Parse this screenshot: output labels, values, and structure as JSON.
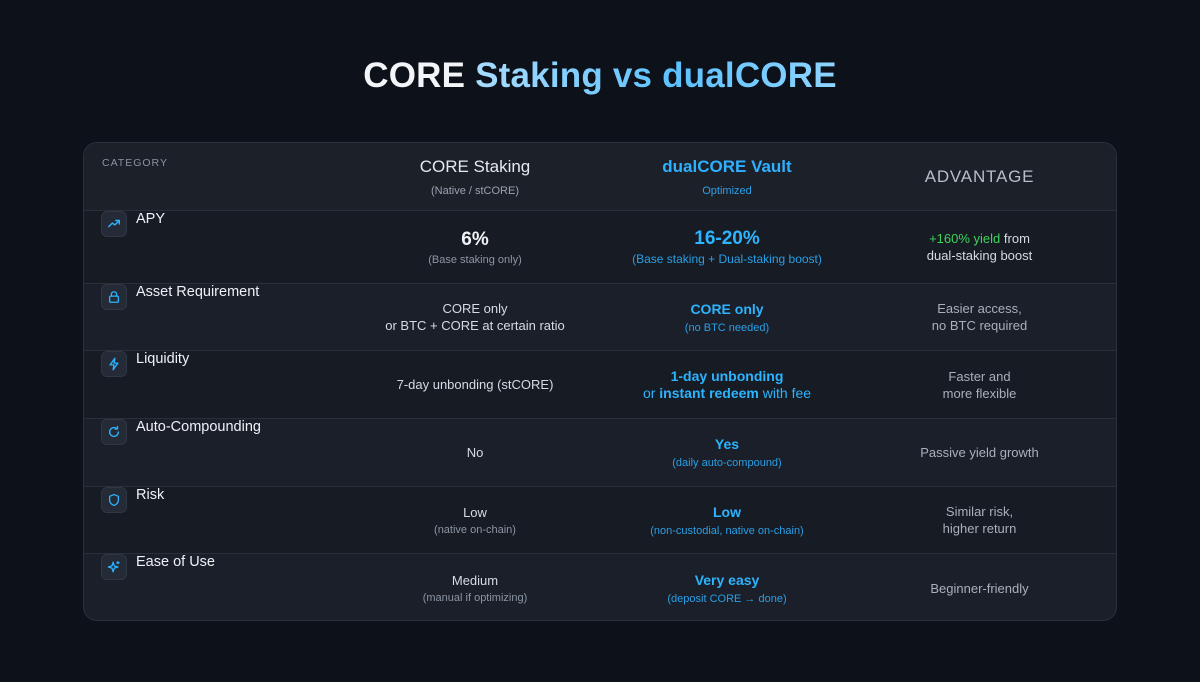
{
  "title": {
    "part1": "CORE ",
    "part2": "Staking vs dualCORE"
  },
  "header": {
    "category": "CATEGORY",
    "core_title": "CORE Staking",
    "core_sub": "(Native / stCORE)",
    "dual_title": "dualCORE Vault",
    "dual_sub": "Optimized",
    "advantage": "ADVANTAGE"
  },
  "rows": [
    {
      "label": "APY",
      "icon": "trend-up-icon",
      "core_main": "6%",
      "core_sub": "(Base staking only)",
      "dual_main": "16-20%",
      "dual_sub": "(Base staking + Dual-staking boost)",
      "adv_green": "+160% yield",
      "adv_rest": " from",
      "adv_line2": "dual-staking boost"
    },
    {
      "label": "Asset Requirement",
      "icon": "lock-icon",
      "core_line1": "CORE only",
      "core_line2": "or BTC + CORE at certain ratio",
      "dual_main": "CORE only",
      "dual_sub": "(no BTC needed)",
      "adv_line1": "Easier access,",
      "adv_line2": "no BTC required"
    },
    {
      "label": "Liquidity",
      "icon": "lightning-icon",
      "core_main": "7-day unbonding (stCORE)",
      "dual_line1": "1-day unbonding",
      "dual_or": "or ",
      "dual_bold2": "instant redeem",
      "dual_tail": " with fee",
      "adv_line1": "Faster and",
      "adv_line2": "more flexible"
    },
    {
      "label": "Auto-Compounding",
      "icon": "refresh-icon",
      "core_main": "No",
      "dual_main": "Yes",
      "dual_sub": "(daily auto-compound)",
      "adv_line1": "Passive yield growth"
    },
    {
      "label": "Risk",
      "icon": "shield-icon",
      "core_main": "Low",
      "core_sub": "(native on-chain)",
      "dual_main": "Low",
      "dual_sub": "(non-custodial, native on-chain)",
      "adv_line1": "Similar risk,",
      "adv_line2": "higher return"
    },
    {
      "label": "Ease of Use",
      "icon": "sparkle-icon",
      "core_main": "Medium",
      "core_sub": "(manual if optimizing)",
      "dual_main": "Very easy",
      "dual_sub": "(deposit CORE → done)",
      "adv_line1": "Beginner-friendly"
    }
  ],
  "colors": {
    "background": "#0d1119",
    "card": "#1a1f29",
    "accent": "#2db4ff",
    "green": "#3fd35a"
  }
}
